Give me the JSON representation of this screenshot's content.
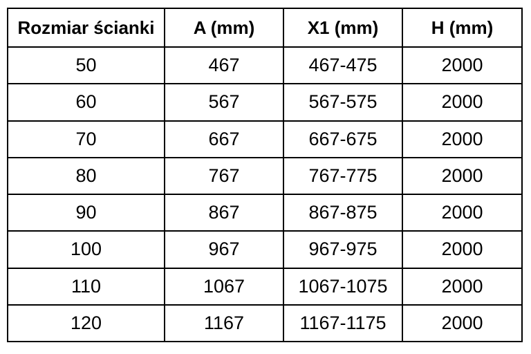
{
  "chart_data": {
    "type": "table",
    "columns": [
      "Rozmiar ścianki",
      "A (mm)",
      "X1 (mm)",
      "H (mm)"
    ],
    "rows": [
      [
        "50",
        "467",
        "467-475",
        "2000"
      ],
      [
        "60",
        "567",
        "567-575",
        "2000"
      ],
      [
        "70",
        "667",
        "667-675",
        "2000"
      ],
      [
        "80",
        "767",
        "767-775",
        "2000"
      ],
      [
        "90",
        "867",
        "867-875",
        "2000"
      ],
      [
        "100",
        "967",
        "967-975",
        "2000"
      ],
      [
        "110",
        "1067",
        "1067-1075",
        "2000"
      ],
      [
        "120",
        "1167",
        "1167-1175",
        "2000"
      ]
    ],
    "layout": {
      "grid": "on",
      "header_bold": true,
      "cell_alignment": "center"
    }
  },
  "colors": {
    "border": "#000000",
    "text": "#000000",
    "background": "#ffffff"
  }
}
